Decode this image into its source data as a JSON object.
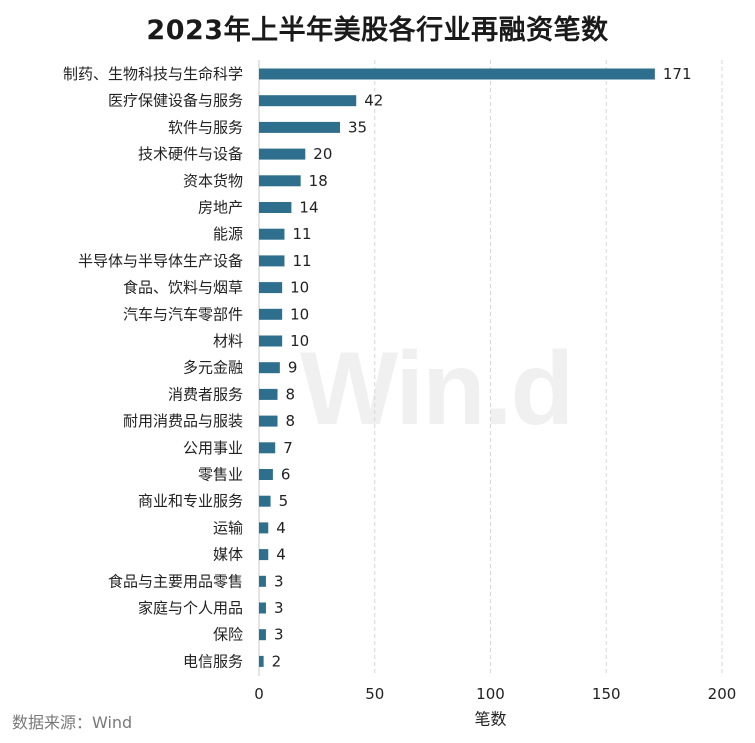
{
  "chart_data": {
    "type": "bar",
    "orientation": "horizontal",
    "title": "2023年上半年美股各行业再融资笔数",
    "xlabel": "笔数",
    "ylabel": "",
    "xlim": [
      0,
      200
    ],
    "xticks": [
      0,
      50,
      100,
      150,
      200
    ],
    "grid": "vertical dashed",
    "bar_color": "#2e6f8e",
    "categories": [
      "制药、生物科技与生命科学",
      "医疗保健设备与服务",
      "软件与服务",
      "技术硬件与设备",
      "资本货物",
      "房地产",
      "能源",
      "半导体与半导体生产设备",
      "食品、饮料与烟草",
      "汽车与汽车零部件",
      "材料",
      "多元金融",
      "消费者服务",
      "耐用消费品与服装",
      "公用事业",
      "零售业",
      "商业和专业服务",
      "运输",
      "媒体",
      "食品与主要用品零售",
      "家庭与个人用品",
      "保险",
      "电信服务"
    ],
    "values": [
      171,
      42,
      35,
      20,
      18,
      14,
      11,
      11,
      10,
      10,
      10,
      9,
      8,
      8,
      7,
      6,
      5,
      4,
      4,
      3,
      3,
      3,
      2
    ],
    "source": "数据来源：Wind",
    "watermark": "Win.d"
  }
}
